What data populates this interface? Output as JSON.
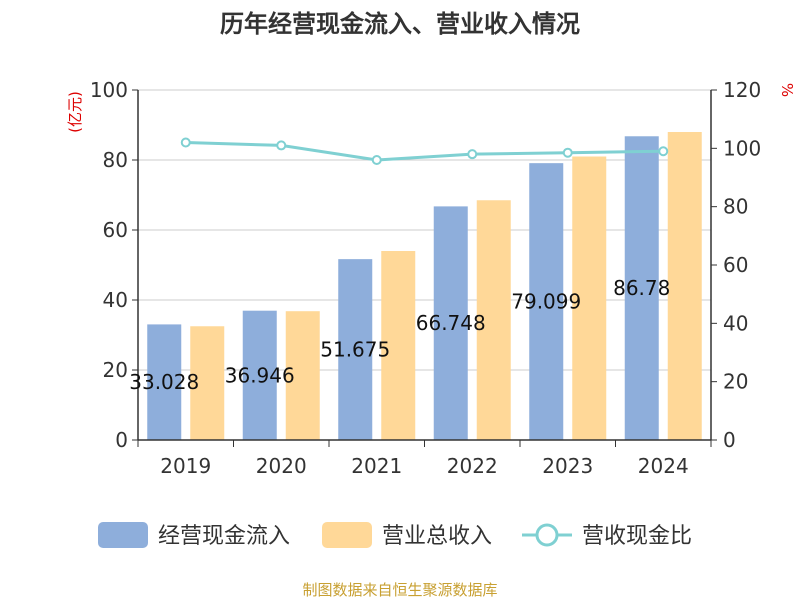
{
  "title": "历年经营现金流入、营业收入情况",
  "source": "制图数据来自恒生聚源数据库",
  "chart_data": {
    "type": "bar",
    "categories": [
      "2019",
      "2020",
      "2021",
      "2022",
      "2023",
      "2024"
    ],
    "series": [
      {
        "name": "经营现金流入",
        "kind": "bar",
        "axis": "left",
        "color": "#8eaedb",
        "values": [
          33.028,
          36.946,
          51.675,
          66.748,
          79.099,
          86.78
        ],
        "labels": [
          "33.028",
          "36.946",
          "51.675",
          "66.748",
          "79.099",
          "86.78"
        ]
      },
      {
        "name": "营业总收入",
        "kind": "bar",
        "axis": "left",
        "color": "#ffd898",
        "values": [
          32.5,
          36.8,
          54.0,
          68.5,
          81.0,
          88.0
        ]
      },
      {
        "name": "营收现金比",
        "kind": "line",
        "axis": "right",
        "color": "#7fd0d2",
        "values": [
          102.0,
          101.0,
          96.0,
          98.0,
          98.5,
          99.0
        ]
      }
    ],
    "y_left": {
      "unit": "(亿元)",
      "min": 0,
      "max": 100,
      "ticks": [
        "0",
        "20",
        "40",
        "60",
        "80",
        "100"
      ]
    },
    "y_right": {
      "unit": "%",
      "min": 0,
      "max": 120,
      "ticks": [
        "0",
        "20",
        "40",
        "60",
        "80",
        "100",
        "120"
      ]
    },
    "grid": true,
    "legend_position": "bottom"
  }
}
